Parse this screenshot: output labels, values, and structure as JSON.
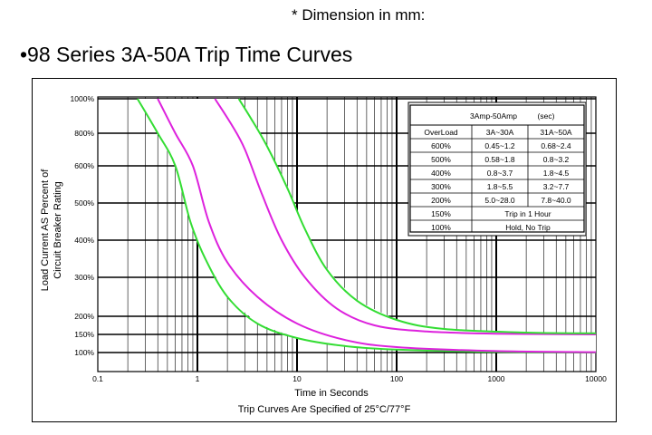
{
  "header": {
    "dimension_note": "* Dimension in mm:",
    "title": "•98 Series 3A-50A Trip Time Curves"
  },
  "chart_data": {
    "type": "line",
    "x_scale": "log",
    "xlim": [
      0.1,
      10000
    ],
    "x_ticks": [
      0.1,
      1,
      10,
      100,
      1000,
      10000
    ],
    "x_tick_labels": [
      "0.1",
      "1",
      "10",
      "100",
      "1000",
      "10000"
    ],
    "y_tick_values": [
      100,
      150,
      200,
      300,
      400,
      500,
      600,
      800,
      1000
    ],
    "y_tick_labels": [
      "100%",
      "150%",
      "200%",
      "300%",
      "400%",
      "500%",
      "600%",
      "800%",
      "1000%"
    ],
    "xlabel": "Time in Seconds",
    "caption": "Trip Curves Are Specified of 25°C/77°F",
    "ylabel_line1": "Load Current AS Percent of",
    "ylabel_line2": "Circuit Breaker Rating",
    "grid": true,
    "series": [
      {
        "color": "#33dd33",
        "points": [
          [
            0.25,
            1000
          ],
          [
            0.4,
            800
          ],
          [
            0.6,
            600
          ],
          [
            0.85,
            450
          ],
          [
            1.2,
            350
          ],
          [
            2,
            250
          ],
          [
            4,
            180
          ],
          [
            10,
            140
          ],
          [
            30,
            118
          ],
          [
            100,
            108
          ],
          [
            1000,
            102
          ],
          [
            10000,
            100
          ]
        ]
      },
      {
        "color": "#dd22dd",
        "points": [
          [
            0.4,
            1000
          ],
          [
            0.6,
            800
          ],
          [
            0.9,
            600
          ],
          [
            1.3,
            450
          ],
          [
            2,
            340
          ],
          [
            4,
            250
          ],
          [
            10,
            180
          ],
          [
            30,
            135
          ],
          [
            100,
            115
          ],
          [
            1000,
            104
          ],
          [
            10000,
            101
          ]
        ]
      },
      {
        "color": "#dd22dd",
        "points": [
          [
            1.5,
            1000
          ],
          [
            2.2,
            850
          ],
          [
            3,
            700
          ],
          [
            4.5,
            520
          ],
          [
            7,
            400
          ],
          [
            12,
            300
          ],
          [
            25,
            220
          ],
          [
            60,
            175
          ],
          [
            200,
            158
          ],
          [
            1000,
            152
          ],
          [
            10000,
            150
          ]
        ]
      },
      {
        "color": "#33dd33",
        "points": [
          [
            2.6,
            1000
          ],
          [
            3.5,
            880
          ],
          [
            5,
            720
          ],
          [
            8,
            540
          ],
          [
            12,
            430
          ],
          [
            20,
            320
          ],
          [
            40,
            240
          ],
          [
            100,
            190
          ],
          [
            300,
            165
          ],
          [
            2000,
            155
          ],
          [
            10000,
            153
          ]
        ]
      }
    ],
    "table": {
      "title": "3Amp-50Amp",
      "unit": "(sec)",
      "headers": [
        "OverLoad",
        "3A~30A",
        "31A~50A"
      ],
      "rows": [
        [
          "600%",
          "0.45~1.2",
          "0.68~2.4"
        ],
        [
          "500%",
          "0.58~1.8",
          "0.8~3.2"
        ],
        [
          "400%",
          "0.8~3.7",
          "1.8~4.5"
        ],
        [
          "300%",
          "1.8~5.5",
          "3.2~7.7"
        ],
        [
          "200%",
          "5.0~28.0",
          "7.8~40.0"
        ]
      ],
      "merged_rows": [
        [
          "150%",
          "Trip in 1 Hour"
        ],
        [
          "100%",
          "Hold, No Trip"
        ]
      ]
    }
  }
}
